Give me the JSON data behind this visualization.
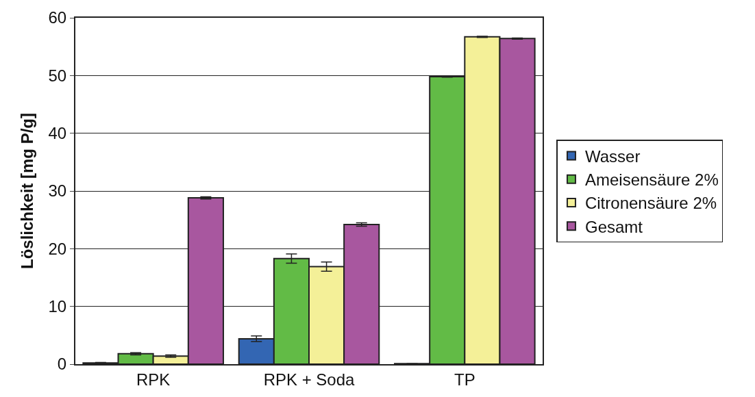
{
  "chart_data": {
    "type": "bar",
    "ylabel": "Löslichkeit [mg P/g]",
    "categories": [
      "RPK",
      "RPK + Soda",
      "TP"
    ],
    "series": [
      {
        "name": "Wasser",
        "color": "#3366b3",
        "values": [
          0.2,
          4.4,
          0.1
        ],
        "errors": [
          0.1,
          0.5,
          null
        ]
      },
      {
        "name": "Ameisensäure 2%",
        "color": "#62bb46",
        "values": [
          1.8,
          18.3,
          49.8
        ],
        "errors": [
          0.2,
          0.8,
          0.1
        ]
      },
      {
        "name": "Citronensäure 2%",
        "color": "#f4f098",
        "values": [
          1.4,
          16.9,
          56.7
        ],
        "errors": [
          0.2,
          0.8,
          0.1
        ]
      },
      {
        "name": "Gesamt",
        "color": "#a8579f",
        "values": [
          28.8,
          24.2,
          56.4
        ],
        "errors": [
          0.2,
          0.3,
          0.1
        ]
      }
    ],
    "ylim": [
      0,
      60
    ],
    "yticks": [
      0,
      10,
      20,
      30,
      40,
      50,
      60
    ],
    "grid": "y",
    "legend": "right"
  }
}
